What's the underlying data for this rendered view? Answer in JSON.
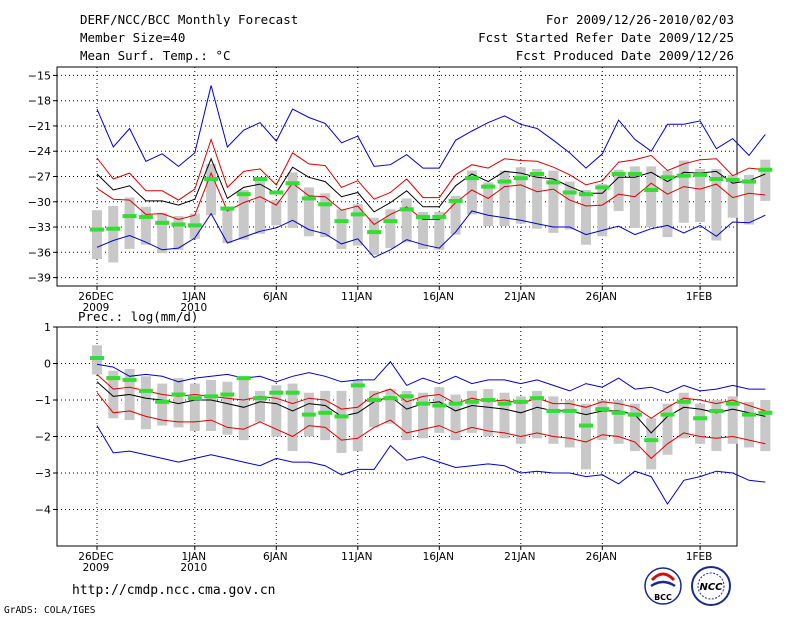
{
  "header": {
    "title": "DERF/NCC/BCC Monthly Forecast",
    "member_size": "Member Size=40",
    "variable1": "Mean Surf. Temp.: °C",
    "period": "For 2009/12/26-2010/02/03",
    "started": "Fcst Started Refer Date 2009/12/25",
    "produced": "Fcst Produced Date 2009/12/26"
  },
  "panel2_label": "Prec.: log(mm/d)",
  "footer": {
    "url": "http://cmdp.ncc.cma.gov.cn",
    "credit": "GrADS: COLA/IGES",
    "logo_bcc": "BCC",
    "logo_ncc": "NCC"
  },
  "colors": {
    "outer": "#0000cc",
    "inner": "#dd0000",
    "median": "#000000",
    "box": "#c8c8c8",
    "highlight": "#33dd33"
  },
  "chart_data": [
    {
      "type": "line",
      "title": "Mean Surf. Temp. (°C)",
      "ylim": [
        -40,
        -14
      ],
      "yticks": [
        -15,
        -18,
        -21,
        -24,
        -27,
        -30,
        -33,
        -36,
        -39
      ],
      "x_tick_labels": [
        {
          "day": 0,
          "label": "26DEC",
          "sub": "2009"
        },
        {
          "day": 6,
          "label": "1JAN",
          "sub": "2010"
        },
        {
          "day": 11,
          "label": "6JAN"
        },
        {
          "day": 16,
          "label": "11JAN"
        },
        {
          "day": 21,
          "label": "16JAN"
        },
        {
          "day": 26,
          "label": "21JAN"
        },
        {
          "day": 31,
          "label": "26JAN"
        },
        {
          "day": 37,
          "label": "1FEB"
        }
      ],
      "days": 40,
      "series": [
        {
          "name": "max",
          "values": [
            -19,
            -23.5,
            -21.3,
            -25.2,
            -24.3,
            -25.8,
            -24.2,
            -16.2,
            -23.5,
            -21.5,
            -20.6,
            -22.8,
            -19,
            -20,
            -20.7,
            -23,
            -22.2,
            -25.8,
            -25.6,
            -24.4,
            -26,
            -26,
            -22.7,
            -21.6,
            -20.6,
            -19.8,
            -20.8,
            -21.3,
            -22.7,
            -24.2,
            -26,
            -24.3,
            -20.3,
            -22.6,
            -24,
            -20.8,
            -20.8,
            -20.4,
            -23.7,
            -22.5,
            -24.5,
            -22
          ]
        },
        {
          "name": "upper_inner",
          "values": [
            -24.8,
            -27.3,
            -26.6,
            -28.7,
            -28.7,
            -29.8,
            -28.5,
            -22.6,
            -28.3,
            -26.4,
            -26.1,
            -28,
            -24.2,
            -25.5,
            -25.7,
            -28.3,
            -27.5,
            -29.7,
            -28.9,
            -27.3,
            -29.5,
            -29.5,
            -26.8,
            -25.6,
            -26,
            -24.9,
            -25.1,
            -25.2,
            -25.9,
            -26.8,
            -28,
            -27.5,
            -25.3,
            -25,
            -24.5,
            -26.3,
            -25.5,
            -25,
            -24.9,
            -26.9,
            -26,
            -26.2
          ]
        },
        {
          "name": "median",
          "values": [
            -26.7,
            -28.6,
            -28.1,
            -29.9,
            -29.9,
            -30.4,
            -29.7,
            -24.9,
            -29.6,
            -28.3,
            -27.9,
            -29,
            -25.9,
            -27.1,
            -27.6,
            -29.4,
            -28.9,
            -31.2,
            -30.1,
            -28.7,
            -30.6,
            -30.6,
            -28.1,
            -26.7,
            -27.6,
            -26.4,
            -26.6,
            -27.1,
            -27.3,
            -28.2,
            -29,
            -29,
            -27.1,
            -27.1,
            -26.5,
            -27.6,
            -26.5,
            -26.6,
            -26.4,
            -27.8,
            -27.5,
            -26.7
          ]
        },
        {
          "name": "lower_inner",
          "values": [
            -28.4,
            -29.7,
            -29.8,
            -31.5,
            -31.4,
            -32.1,
            -31.6,
            -26.6,
            -31.1,
            -30.1,
            -29.4,
            -30.4,
            -27.8,
            -29.3,
            -29.4,
            -31,
            -30.5,
            -32.7,
            -31.5,
            -30.6,
            -32.1,
            -32.1,
            -30.1,
            -28.6,
            -29.6,
            -28.2,
            -28,
            -28.8,
            -28.5,
            -29.8,
            -30.5,
            -30.4,
            -29.1,
            -29.4,
            -27.8,
            -29.1,
            -28.2,
            -28.5,
            -27.9,
            -29.5,
            -29,
            -29.2
          ]
        },
        {
          "name": "min",
          "values": [
            -35.4,
            -34.6,
            -34,
            -34.8,
            -35.7,
            -35.5,
            -34.3,
            -31.4,
            -34.9,
            -34.2,
            -33.5,
            -33.1,
            -32.2,
            -33.3,
            -33.8,
            -35,
            -34.4,
            -36.6,
            -35.7,
            -34.5,
            -35.1,
            -35.5,
            -33.6,
            -31.1,
            -31.6,
            -31.9,
            -32.2,
            -32.6,
            -33,
            -33,
            -33.9,
            -33.4,
            -32.9,
            -33.9,
            -33.2,
            -32.8,
            -33.7,
            -32.8,
            -34.1,
            -32.4,
            -32.5,
            -31.6
          ]
        },
        {
          "name": "forecast",
          "values": [
            -33.3,
            -33.2,
            -31.7,
            -31.8,
            -32.5,
            -32.7,
            -32.8,
            -27.3,
            -30.8,
            -29.1,
            -27.3,
            -28.9,
            -27.8,
            -29.6,
            -30.3,
            -32.3,
            -31.5,
            -33.6,
            -32.3,
            -30.9,
            -31.8,
            -31.8,
            -29.9,
            -27.2,
            -28.2,
            -27.6,
            -27.2,
            -26.7,
            -27.7,
            -28.9,
            -29.1,
            -28.3,
            -26.7,
            -26.7,
            -28.6,
            -27.1,
            -26.9,
            -26.8,
            -27.3,
            -27.4,
            -27.6,
            -26.2
          ]
        },
        {
          "name": "box_top",
          "values": [
            -31,
            -30.5,
            -29.5,
            -30.6,
            -31.3,
            -31.7,
            -31.4,
            -25.5,
            -30.6,
            -28.6,
            -27.5,
            -29.8,
            -26.5,
            -28.3,
            -29,
            -30.9,
            -30.3,
            -31.9,
            -30.9,
            -29.6,
            -31.2,
            -31.2,
            -29.3,
            -26.3,
            -27.7,
            -26.3,
            -25.9,
            -26.1,
            -26.3,
            -27.6,
            -28.6,
            -27.9,
            -26.2,
            -25.8,
            -25.8,
            -26.3,
            -25.1,
            -26.1,
            -26.1,
            -26.8,
            -26.8,
            -25
          ]
        },
        {
          "name": "box_bottom",
          "values": [
            -36.8,
            -37.2,
            -35.6,
            -35.1,
            -36.1,
            -35.7,
            -34.4,
            -31.6,
            -34.9,
            -34.5,
            -33.8,
            -32.8,
            -33.1,
            -34.1,
            -34.2,
            -35.6,
            -35.2,
            -36.3,
            -35.5,
            -34.8,
            -35.6,
            -35.7,
            -33.9,
            -31.5,
            -32.9,
            -32.9,
            -32.6,
            -33.2,
            -33.7,
            -33.3,
            -35.1,
            -34.1,
            -31.1,
            -33.1,
            -33,
            -34.2,
            -32.5,
            -32.4,
            -34.6,
            -31.9,
            -32.7,
            -29.9
          ]
        }
      ]
    },
    {
      "type": "line",
      "title": "Prec.: log(mm/d)",
      "ylim": [
        -5,
        1
      ],
      "yticks": [
        1,
        0,
        -1,
        -2,
        -3,
        -4
      ],
      "x_tick_labels": [
        {
          "day": 0,
          "label": "26DEC",
          "sub": "2009"
        },
        {
          "day": 6,
          "label": "1JAN",
          "sub": "2010"
        },
        {
          "day": 11,
          "label": "6JAN"
        },
        {
          "day": 16,
          "label": "11JAN"
        },
        {
          "day": 21,
          "label": "16JAN"
        },
        {
          "day": 26,
          "label": "21JAN"
        },
        {
          "day": 31,
          "label": "26JAN"
        },
        {
          "day": 37,
          "label": "1FEB"
        }
      ],
      "days": 40,
      "series": [
        {
          "name": "max",
          "values": [
            -0.02,
            -0.1,
            -0.35,
            -0.3,
            -0.35,
            -0.5,
            -0.4,
            -0.35,
            -0.3,
            -0.4,
            -0.35,
            -0.5,
            -0.35,
            -0.25,
            -0.35,
            -0.5,
            -0.45,
            -0.45,
            0.05,
            -0.6,
            -0.4,
            -0.55,
            -0.35,
            -0.55,
            -0.45,
            -0.45,
            -0.55,
            -0.45,
            -0.6,
            -0.75,
            -0.55,
            -0.65,
            -0.4,
            -0.7,
            -0.65,
            -0.8,
            -0.6,
            -0.75,
            -0.7,
            -0.6,
            -0.7,
            -0.7
          ]
        },
        {
          "name": "upper_inner",
          "values": [
            -0.3,
            -0.7,
            -0.65,
            -0.75,
            -0.85,
            -0.9,
            -0.85,
            -0.9,
            -0.95,
            -1,
            -0.9,
            -0.95,
            -1.1,
            -0.95,
            -1,
            -1.25,
            -1.2,
            -0.85,
            -0.7,
            -1.05,
            -0.9,
            -0.85,
            -1.1,
            -0.95,
            -1.05,
            -1.0,
            -1.1,
            -0.95,
            -1.1,
            -1.1,
            -1.2,
            -1.05,
            -1.1,
            -1.2,
            -1.5,
            -1.2,
            -0.95,
            -1,
            -1.1,
            -1,
            -1.15,
            -1.3
          ]
        },
        {
          "name": "median",
          "values": [
            -0.5,
            -0.9,
            -0.85,
            -0.95,
            -1.0,
            -1.1,
            -1.0,
            -1.0,
            -1.1,
            -1.2,
            -1.05,
            -1.1,
            -1.3,
            -1.1,
            -1.15,
            -1.45,
            -1.35,
            -1.05,
            -0.9,
            -1.25,
            -1.1,
            -1.05,
            -1.3,
            -1.15,
            -1.2,
            -1.25,
            -1.35,
            -1.2,
            -1.3,
            -1.3,
            -1.4,
            -1.3,
            -1.3,
            -1.4,
            -1.9,
            -1.45,
            -1.2,
            -1.25,
            -1.35,
            -1.25,
            -1.35,
            -1.45
          ]
        },
        {
          "name": "lower_inner",
          "values": [
            -0.8,
            -1.35,
            -1.3,
            -1.45,
            -1.55,
            -1.6,
            -1.6,
            -1.55,
            -1.75,
            -1.8,
            -1.6,
            -1.8,
            -2.0,
            -1.7,
            -1.75,
            -2.1,
            -2.05,
            -1.75,
            -1.55,
            -1.9,
            -1.8,
            -1.7,
            -1.9,
            -1.75,
            -1.85,
            -1.9,
            -2.0,
            -1.9,
            -2.0,
            -2.05,
            -2.15,
            -1.95,
            -2.0,
            -2.15,
            -2.6,
            -2.2,
            -1.9,
            -2.0,
            -2.05,
            -2.0,
            -2.1,
            -2.2
          ]
        },
        {
          "name": "min",
          "values": [
            -1.7,
            -2.45,
            -2.4,
            -2.5,
            -2.6,
            -2.7,
            -2.6,
            -2.5,
            -2.6,
            -2.7,
            -2.8,
            -2.6,
            -2.7,
            -2.7,
            -2.8,
            -3.05,
            -2.9,
            -2.9,
            -2.25,
            -2.65,
            -2.55,
            -2.7,
            -2.85,
            -2.8,
            -2.75,
            -2.8,
            -3.0,
            -2.95,
            -3.0,
            -3.0,
            -3.1,
            -3.05,
            -3.3,
            -2.95,
            -3.1,
            -3.85,
            -3.2,
            -3.1,
            -2.95,
            -3.0,
            -3.2,
            -3.25
          ]
        },
        {
          "name": "forecast",
          "values": [
            0.15,
            -0.4,
            -0.45,
            -0.75,
            -1.05,
            -0.85,
            -0.95,
            -0.9,
            -0.85,
            -0.4,
            -0.95,
            -0.8,
            -0.8,
            -1.4,
            -1.35,
            -1.45,
            -0.6,
            -1.0,
            -0.95,
            -0.9,
            -1.1,
            -1.15,
            -1.1,
            -1.05,
            -1.0,
            -1.1,
            -1.05,
            -0.95,
            -1.3,
            -1.3,
            -1.7,
            -1.25,
            -1.35,
            -1.4,
            -2.1,
            -1.4,
            -1.05,
            -1.5,
            -1.3,
            -1.1,
            -1.4,
            -1.35
          ]
        },
        {
          "name": "box_top",
          "values": [
            0.5,
            -0.2,
            -0.15,
            -0.35,
            -0.55,
            -0.4,
            -0.55,
            -0.45,
            -0.5,
            -0.4,
            -0.75,
            -0.6,
            -0.55,
            -0.8,
            -0.75,
            -0.75,
            -0.45,
            -0.75,
            -0.7,
            -0.75,
            -0.8,
            -0.65,
            -0.85,
            -0.75,
            -0.7,
            -0.8,
            -0.9,
            -0.75,
            -0.9,
            -1.0,
            -1.1,
            -1.0,
            -1.0,
            -1.1,
            -1.5,
            -1.1,
            -0.8,
            -1.1,
            -1.0,
            -0.9,
            -1.05,
            -1.0
          ]
        },
        {
          "name": "box_bottom",
          "values": [
            -0.3,
            -1.5,
            -1.55,
            -1.8,
            -1.7,
            -1.75,
            -1.85,
            -1.85,
            -1.95,
            -2.1,
            -1.6,
            -2.0,
            -2.4,
            -2.0,
            -2.1,
            -2.45,
            -2.4,
            -1.75,
            -1.65,
            -2.1,
            -2.05,
            -1.9,
            -2.1,
            -1.9,
            -2.0,
            -2.05,
            -2.2,
            -2.05,
            -2.2,
            -2.3,
            -2.9,
            -2.1,
            -2.2,
            -2.4,
            -2.9,
            -2.5,
            -2.05,
            -2.2,
            -2.4,
            -2.2,
            -2.3,
            -2.4
          ]
        }
      ]
    }
  ]
}
